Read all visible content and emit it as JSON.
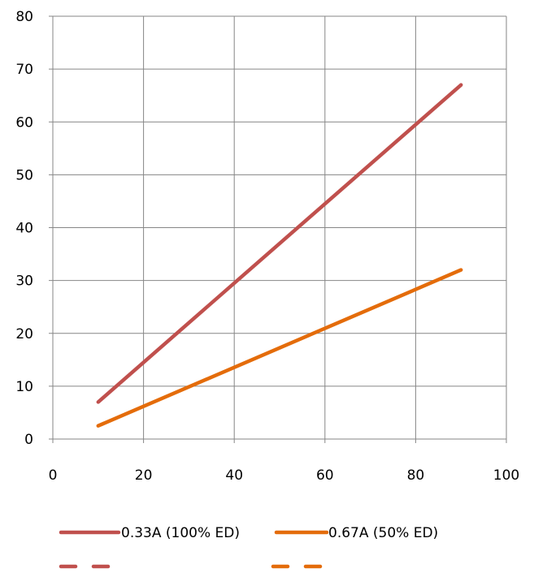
{
  "chart_data": {
    "type": "line",
    "title": "",
    "xlabel": "",
    "ylabel": "",
    "xlim": [
      0,
      100
    ],
    "ylim": [
      0,
      80
    ],
    "x_ticks": [
      "0",
      "20",
      "40",
      "60",
      "80",
      "100"
    ],
    "y_ticks": [
      "0",
      "10",
      "20",
      "30",
      "40",
      "50",
      "60",
      "70",
      "80"
    ],
    "grid": true,
    "legend_position": "bottom",
    "series": [
      {
        "name": "0.33A (100% ED)",
        "color": "#c0504d",
        "style": "solid",
        "x": [
          10,
          90
        ],
        "y": [
          7,
          67
        ]
      },
      {
        "name": "0.67A (50% ED)",
        "color": "#e46c0a",
        "style": "solid",
        "x": [
          10,
          90
        ],
        "y": [
          2.5,
          32
        ]
      },
      {
        "name": "",
        "color": "#c0504d",
        "style": "dashed",
        "x": [],
        "y": []
      },
      {
        "name": "",
        "color": "#e46c0a",
        "style": "dashed",
        "x": [],
        "y": []
      }
    ]
  }
}
